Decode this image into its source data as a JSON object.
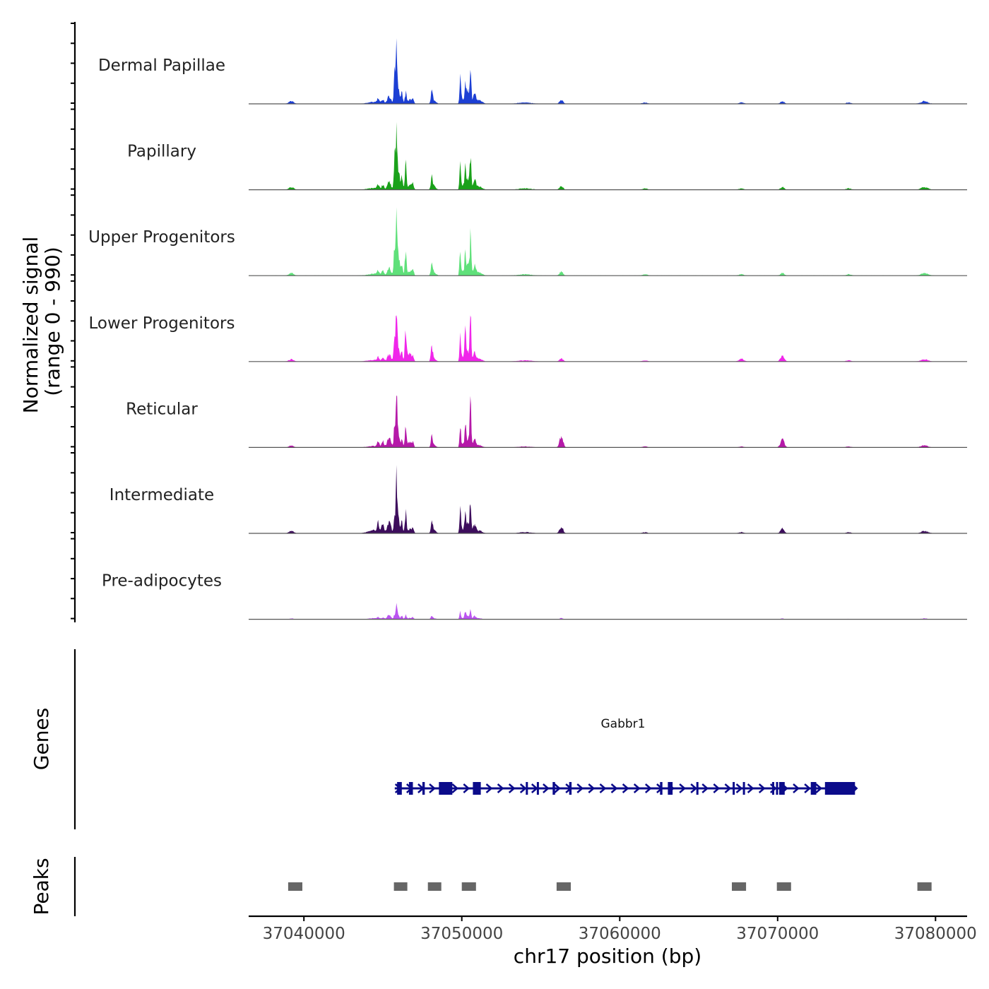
{
  "chart_data": {
    "type": "area",
    "title": "",
    "xlabel": "chr17 position (bp)",
    "ylabel_line1": "Normalized signal",
    "ylabel_line2": "(range 0 - 990)",
    "xlim": [
      37036500,
      37082000
    ],
    "x_ticks": [
      37040000,
      37050000,
      37060000,
      37070000,
      37080000
    ],
    "x_tick_labels": [
      "37040000",
      "37050000",
      "37060000",
      "37070000",
      "37080000"
    ],
    "ylim": [
      0,
      990
    ],
    "signal_start": 37036500,
    "signal_end": 37080000,
    "peak_shape": [
      [
        37039200,
        0.04,
        150
      ],
      [
        37044500,
        0.03,
        400
      ],
      [
        37044700,
        0.06,
        60
      ],
      [
        37045000,
        0.06,
        70
      ],
      [
        37045400,
        0.12,
        110
      ],
      [
        37045750,
        0.5,
        55
      ],
      [
        37045870,
        1.0,
        45
      ],
      [
        37046000,
        0.35,
        60
      ],
      [
        37046200,
        0.2,
        55
      ],
      [
        37046450,
        0.4,
        55
      ],
      [
        37046700,
        0.08,
        90
      ],
      [
        37046900,
        0.1,
        60
      ],
      [
        37048100,
        0.2,
        60
      ],
      [
        37048250,
        0.05,
        120
      ],
      [
        37049900,
        0.4,
        45
      ],
      [
        37050050,
        0.08,
        90
      ],
      [
        37050220,
        0.4,
        45
      ],
      [
        37050380,
        0.2,
        80
      ],
      [
        37050550,
        0.55,
        45
      ],
      [
        37050800,
        0.15,
        90
      ],
      [
        37051100,
        0.05,
        180
      ],
      [
        37054000,
        0.02,
        400
      ],
      [
        37056300,
        0.06,
        110
      ],
      [
        37061600,
        0.02,
        150
      ],
      [
        37067700,
        0.02,
        150
      ],
      [
        37070300,
        0.04,
        120
      ],
      [
        37074500,
        0.02,
        150
      ],
      [
        37079300,
        0.04,
        220
      ]
    ],
    "tracks": [
      {
        "name": "Dermal Papillae",
        "color": "#1c3fd4",
        "peak_max": 1.0,
        "mods": [
          [
            4,
            1.0
          ],
          [
            7,
            0.65
          ],
          [
            9,
            0.45
          ],
          [
            12,
            0.95
          ],
          [
            16,
            0.95
          ],
          [
            18,
            1.1
          ]
        ]
      },
      {
        "name": "Papillary",
        "color": "#1aa11a",
        "peak_max": 1.0,
        "mods": [
          [
            7,
            0.9
          ],
          [
            12,
            0.9
          ],
          [
            16,
            1.05
          ],
          [
            18,
            1.0
          ]
        ]
      },
      {
        "name": "Upper Progenitors",
        "color": "#5fe07a",
        "peak_max": 1.0,
        "mods": [
          [
            12,
            0.9
          ],
          [
            16,
            1.0
          ],
          [
            18,
            1.1
          ]
        ]
      },
      {
        "name": "Lower Progenitors",
        "color": "#f026ea",
        "peak_max": 0.88,
        "mods": [
          [
            7,
            0.7
          ],
          [
            9,
            1.6
          ],
          [
            10,
            2.2
          ],
          [
            12,
            1.25
          ],
          [
            16,
            1.4
          ],
          [
            18,
            1.65
          ],
          [
            24,
            2.5
          ],
          [
            25,
            2.5
          ]
        ]
      },
      {
        "name": "Reticular",
        "color": "#b519a8",
        "peak_max": 0.75,
        "mods": [
          [
            2,
            2.0
          ],
          [
            3,
            2.0
          ],
          [
            4,
            2.0
          ],
          [
            7,
            0.95
          ],
          [
            9,
            1.2
          ],
          [
            10,
            1.5
          ],
          [
            12,
            1.2
          ],
          [
            16,
            1.25
          ],
          [
            18,
            1.75
          ],
          [
            22,
            4.0
          ],
          [
            25,
            4.0
          ]
        ]
      },
      {
        "name": "Intermediate",
        "color": "#3d0d5c",
        "peak_max": 0.88,
        "mods": [
          [
            1,
            2.0
          ],
          [
            2,
            2.5
          ],
          [
            3,
            3.0
          ],
          [
            4,
            1.8
          ],
          [
            5,
            0.6
          ],
          [
            7,
            0.7
          ],
          [
            9,
            0.9
          ],
          [
            12,
            1.1
          ],
          [
            16,
            1.1
          ],
          [
            18,
            1.2
          ],
          [
            22,
            2.0
          ],
          [
            25,
            2.0
          ]
        ]
      },
      {
        "name": "Pre-adipocytes",
        "color": "#bb55f0",
        "peak_max": 0.3,
        "mods": [
          [
            1,
            2.0
          ],
          [
            4,
            2.0
          ],
          [
            5,
            0.5
          ],
          [
            7,
            0.5
          ],
          [
            9,
            0.6
          ],
          [
            12,
            0.9
          ],
          [
            14,
            1.0
          ],
          [
            16,
            1.0
          ],
          [
            18,
            1.0
          ]
        ]
      }
    ],
    "genes_label": "Genes",
    "gene": {
      "name": "Gabbr1",
      "color": "#0b0b8a",
      "strand": "+",
      "start": 37045750,
      "end": 37075000,
      "exons": [
        [
          37045900,
          37046200
        ],
        [
          37046650,
          37046900
        ],
        [
          37047500,
          37047650
        ],
        [
          37048550,
          37049400
        ],
        [
          37050700,
          37051200
        ],
        [
          37054050,
          37054150
        ],
        [
          37054750,
          37054850
        ],
        [
          37055750,
          37055900
        ],
        [
          37056800,
          37056950
        ],
        [
          37062550,
          37062700
        ],
        [
          37063050,
          37063350
        ],
        [
          37064850,
          37064950
        ],
        [
          37067150,
          37067250
        ],
        [
          37067800,
          37067900
        ],
        [
          37069650,
          37069700
        ],
        [
          37069900,
          37069950
        ],
        [
          37070100,
          37070450
        ],
        [
          37072100,
          37072450
        ],
        [
          37073000,
          37074900
        ]
      ]
    },
    "peaks_label": "Peaks",
    "peaks_color": "#666666",
    "peaks": [
      [
        37039000,
        37039900
      ],
      [
        37045700,
        37046550
      ],
      [
        37047850,
        37048700
      ],
      [
        37050000,
        37050900
      ],
      [
        37056000,
        37056900
      ],
      [
        37067100,
        37068000
      ],
      [
        37069950,
        37070850
      ],
      [
        37078850,
        37079750
      ]
    ]
  }
}
